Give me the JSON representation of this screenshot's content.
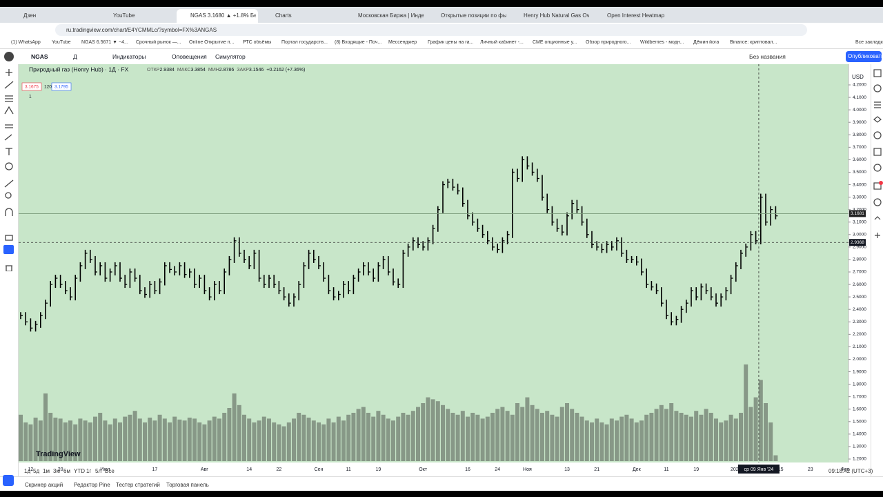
{
  "browser": {
    "tabs": [
      "Дзен",
      "YouTube",
      "NGAS 3.1680 ▲ +1.8% Без наз...",
      "Charts",
      "Московская Биржа | Индексы",
      "Открытые позиции по фьючер...",
      "Henry Hub Natural Gas Overvie...",
      "Open Interest Heatmap"
    ],
    "url": "ru.tradingview.com/chart/E4YCMMLc/?symbol=FX%3ANGAS",
    "bookmarks": [
      "(1) WhatsApp",
      "YouTube",
      "NGAS 6.5671 ▼ −4...",
      "Срочный рынок —...",
      "Online Открытие п...",
      "РТС объёмы",
      "Портал государств...",
      "(8) Входящие - Поч...",
      "Мессенджер",
      "График цены на га...",
      "Личный кабинет -...",
      "CME опционные у...",
      "Обзор природного...",
      "Wildberries - модн...",
      "Дёмин йога",
      "Binance: криптовал...",
      "Все закладки"
    ]
  },
  "toolbar": {
    "items": [
      "NGAS",
      "Д",
      "Индикаторы",
      "Оповещения",
      "Симулятор"
    ],
    "layout_name": "Без названия",
    "publish": "Опубликовать"
  },
  "legend": {
    "title": "Природный газ (Henry Hub) · 1Д · FX",
    "ohlc": [
      {
        "label": "ОТКР",
        "value": 2.9384
      },
      {
        "label": "МАКС",
        "value": 3.3854
      },
      {
        "label": "МИН",
        "value": 2.8786
      },
      {
        "label": "ЗАКР",
        "value": 3.1546
      }
    ],
    "change": "+0.2162 (+7.36%)",
    "bid": 3.1675,
    "spread": 120,
    "ask": 3.1795,
    "pane": "1"
  },
  "chart_data": {
    "type": "bar",
    "categories": [
      null,
      null,
      "12",
      null,
      null,
      null,
      null,
      null,
      "20",
      null,
      null,
      null,
      null,
      null,
      null,
      null,
      null,
      "Июл",
      null,
      null,
      null,
      null,
      null,
      null,
      null,
      null,
      null,
      "17",
      null,
      null,
      null,
      null,
      null,
      null,
      null,
      null,
      null,
      "Авг",
      null,
      null,
      null,
      null,
      null,
      null,
      null,
      null,
      "14",
      null,
      null,
      null,
      null,
      null,
      "22",
      null,
      null,
      null,
      null,
      null,
      null,
      null,
      "Сен",
      null,
      null,
      null,
      null,
      null,
      "11",
      null,
      null,
      null,
      null,
      null,
      "19",
      null,
      null,
      null,
      null,
      null,
      null,
      null,
      null,
      "Окт",
      null,
      null,
      null,
      null,
      null,
      null,
      null,
      null,
      "16",
      null,
      null,
      null,
      null,
      null,
      "24",
      null,
      null,
      null,
      null,
      null,
      "Ноя",
      null,
      null,
      null,
      null,
      null,
      null,
      null,
      "13",
      null,
      null,
      null,
      null,
      null,
      "21",
      null,
      null,
      null,
      null,
      null,
      null,
      null,
      "Дек",
      null,
      null,
      null,
      null,
      null,
      "11",
      null,
      null,
      null,
      null,
      null,
      "19",
      null,
      null,
      null,
      null,
      null,
      null,
      null,
      "2024",
      null,
      null,
      null,
      null,
      null,
      null,
      null,
      null,
      "15",
      null,
      null,
      null,
      null,
      null,
      "23",
      null,
      null,
      null,
      null,
      null,
      null,
      "Фев"
    ],
    "series": [
      {
        "name": "Природный газ (Henry Hub)",
        "color": "#000000",
        "values": [
          2.35,
          2.3,
          2.25,
          2.28,
          2.35,
          2.45,
          2.6,
          2.65,
          2.6,
          2.55,
          2.5,
          2.65,
          2.75,
          2.85,
          2.8,
          2.7,
          2.75,
          2.65,
          2.7,
          2.75,
          2.65,
          2.6,
          2.7,
          2.65,
          2.55,
          2.52,
          2.6,
          2.55,
          2.62,
          2.75,
          2.72,
          2.7,
          2.75,
          2.68,
          2.7,
          2.6,
          2.65,
          2.55,
          2.5,
          2.6,
          2.55,
          2.7,
          2.8,
          2.95,
          2.85,
          2.8,
          2.75,
          2.85,
          2.65,
          2.6,
          2.65,
          2.6,
          2.55,
          2.5,
          2.45,
          2.5,
          2.6,
          2.75,
          2.85,
          2.8,
          2.75,
          2.65,
          2.55,
          2.5,
          2.52,
          2.6,
          2.55,
          2.65,
          2.7,
          2.75,
          2.7,
          2.65,
          2.75,
          2.8,
          2.7,
          2.62,
          2.6,
          2.85,
          2.9,
          2.95,
          2.92,
          2.9,
          2.95,
          3.05,
          3.2,
          3.4,
          3.42,
          3.38,
          3.35,
          3.25,
          3.15,
          3.1,
          3.05,
          3.0,
          2.95,
          2.9,
          2.88,
          2.95,
          3.0,
          3.5,
          3.45,
          3.6,
          3.55,
          3.5,
          3.45,
          3.3,
          3.2,
          3.1,
          3.05,
          3.02,
          3.15,
          3.25,
          3.2,
          3.1,
          3.0,
          2.92,
          2.9,
          2.88,
          2.92,
          2.9,
          2.95,
          2.85,
          2.8,
          2.8,
          2.78,
          2.7,
          2.6,
          2.58,
          2.55,
          2.45,
          2.35,
          2.3,
          2.32,
          2.4,
          2.45,
          2.55,
          2.5,
          2.58,
          2.55,
          2.5,
          2.45,
          2.5,
          2.55,
          2.65,
          2.75,
          2.85,
          2.9,
          3.0,
          2.95,
          3.3,
          3.1,
          3.2,
          3.15,
          null,
          null,
          null,
          null,
          null,
          null,
          null,
          null,
          null,
          null,
          null,
          null,
          null,
          null
        ]
      },
      {
        "name": "Объём",
        "color": "#7f8f7f",
        "values": [
          48,
          40,
          38,
          45,
          42,
          70,
          50,
          45,
          44,
          40,
          42,
          38,
          44,
          42,
          40,
          46,
          50,
          42,
          38,
          44,
          40,
          46,
          48,
          52,
          44,
          40,
          45,
          42,
          48,
          44,
          40,
          46,
          43,
          42,
          45,
          44,
          40,
          38,
          42,
          46,
          44,
          50,
          55,
          70,
          58,
          48,
          44,
          40,
          42,
          46,
          44,
          40,
          38,
          36,
          40,
          44,
          50,
          48,
          45,
          42,
          40,
          38,
          44,
          40,
          46,
          42,
          48,
          50,
          54,
          56,
          50,
          46,
          52,
          48,
          44,
          42,
          46,
          50,
          48,
          52,
          56,
          60,
          66,
          64,
          62,
          58,
          54,
          50,
          48,
          52,
          46,
          50,
          48,
          44,
          46,
          50,
          54,
          56,
          52,
          48,
          60,
          56,
          66,
          58,
          54,
          50,
          52,
          48,
          46,
          56,
          60,
          54,
          50,
          46,
          42,
          40,
          44,
          40,
          38,
          44,
          42,
          46,
          48,
          44,
          40,
          42,
          48,
          50,
          54,
          58,
          54,
          60,
          52,
          50,
          48,
          46,
          52,
          48,
          54,
          50,
          44,
          40,
          42,
          48,
          44,
          50,
          100,
          56,
          66,
          84,
          60,
          40,
          6,
          null,
          null,
          null,
          null,
          null,
          null,
          null,
          null,
          null,
          null,
          null,
          null,
          null,
          null
        ]
      }
    ],
    "ylim": [
      1.2,
      4.2
    ],
    "yticks": [
      {
        "value": 1.2,
        "label": "1.2000"
      },
      {
        "value": 1.3,
        "label": "1.3000"
      },
      {
        "value": 1.4,
        "label": "1.4000"
      },
      {
        "value": 1.5,
        "label": "1.5000"
      },
      {
        "value": 1.6,
        "label": "1.6000"
      },
      {
        "value": 1.7,
        "label": "1.7000"
      },
      {
        "value": 1.8,
        "label": "1.8000"
      },
      {
        "value": 1.9,
        "label": "1.9000"
      },
      {
        "value": 2.0,
        "label": "2.0000"
      },
      {
        "value": 2.1,
        "label": "2.1000"
      },
      {
        "value": 2.2,
        "label": "2.2000"
      },
      {
        "value": 2.3,
        "label": "2.3000"
      },
      {
        "value": 2.4,
        "label": "2.4000"
      },
      {
        "value": 2.5,
        "label": "2.5000"
      },
      {
        "value": 2.6,
        "label": "2.6000"
      },
      {
        "value": 2.7,
        "label": "2.7000"
      },
      {
        "value": 2.8,
        "label": "2.8000"
      },
      {
        "value": 2.9,
        "label": "2.9000"
      },
      {
        "value": 3.0,
        "label": "3.0000"
      },
      {
        "value": 3.1,
        "label": "3.1000"
      },
      {
        "value": 3.2,
        "label": "3.2000"
      },
      {
        "value": 3.3,
        "label": "3.3000"
      },
      {
        "value": 3.4,
        "label": "3.4000"
      },
      {
        "value": 3.5,
        "label": "3.5000"
      },
      {
        "value": 3.6,
        "label": "3.6000"
      },
      {
        "value": 3.7,
        "label": "3.7000"
      },
      {
        "value": 3.8,
        "label": "3.8000"
      },
      {
        "value": 3.9,
        "label": "3.9000"
      },
      {
        "value": 4.0,
        "label": "4.0000"
      },
      {
        "value": 4.1,
        "label": "4.1000"
      },
      {
        "value": 4.2,
        "label": "4.2000"
      }
    ],
    "currency": "USD",
    "last_price": 3.1681,
    "crosshair_price": 2.9368,
    "crosshair_date": "ср 09 Янв '24",
    "background": "#c8e6c9",
    "grid": false
  },
  "logo": "TradingView",
  "footer": {
    "ranges": [
      "1д",
      "5д",
      "1м",
      "3м",
      "6м",
      "YTD",
      "1г",
      "5л",
      "Все"
    ],
    "time": "09:18:42 (UTC+3)",
    "panels": [
      "Скринер акций",
      "Редактор Pine",
      "Тестер стратегий",
      "Торговая панель"
    ]
  }
}
